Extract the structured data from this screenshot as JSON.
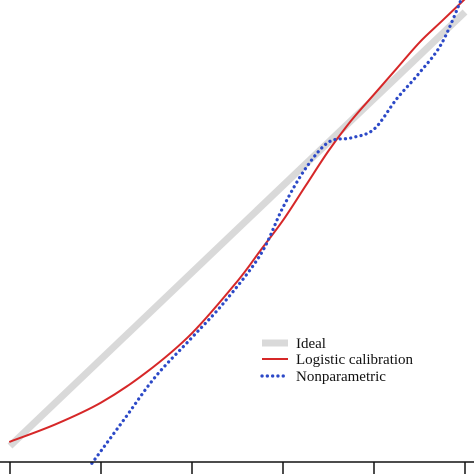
{
  "chart_data": {
    "type": "line",
    "title": "",
    "xlabel": "",
    "ylabel": "",
    "xlim": [
      0,
      1
    ],
    "ylim": [
      0,
      1
    ],
    "grid": false,
    "legend_position": "bottom-right",
    "x_ticks": [
      0,
      0.2,
      0.4,
      0.6,
      0.8,
      1.0
    ],
    "colors": {
      "ideal": "#d9d9d9",
      "logistic": "#d62728",
      "nonparametric": "#2c49c7",
      "axis": "#111111"
    },
    "series": [
      {
        "name": "Ideal",
        "style": "solid-thick",
        "x": [
          0.0,
          1.0
        ],
        "y": [
          0.0,
          1.0
        ]
      },
      {
        "name": "Logistic calibration",
        "style": "solid",
        "x": [
          0.0,
          0.1,
          0.2,
          0.3,
          0.4,
          0.5,
          0.55,
          0.6,
          0.65,
          0.7,
          0.75,
          0.8,
          0.85,
          0.9,
          0.95,
          1.0
        ],
        "y": [
          0.01,
          0.05,
          0.1,
          0.17,
          0.26,
          0.38,
          0.45,
          0.52,
          0.6,
          0.68,
          0.75,
          0.81,
          0.87,
          0.93,
          0.98,
          1.03
        ]
      },
      {
        "name": "Nonparametric",
        "style": "dotted",
        "x": [
          0.18,
          0.25,
          0.32,
          0.4,
          0.47,
          0.55,
          0.6,
          0.65,
          0.7,
          0.75,
          0.8,
          0.85,
          0.9,
          0.95,
          1.0
        ],
        "y": [
          -0.04,
          0.06,
          0.16,
          0.25,
          0.33,
          0.44,
          0.55,
          0.64,
          0.7,
          0.71,
          0.73,
          0.8,
          0.86,
          0.93,
          1.05
        ]
      }
    ]
  }
}
